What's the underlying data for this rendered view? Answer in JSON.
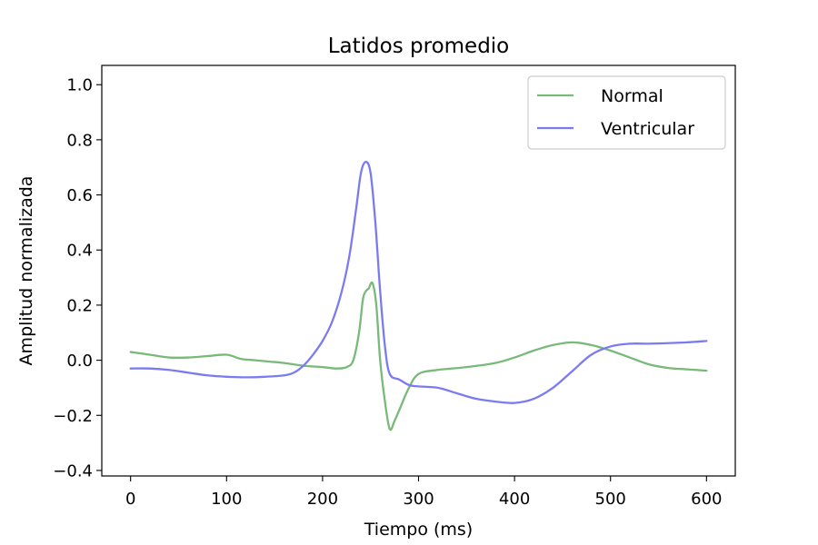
{
  "chart_data": {
    "type": "line",
    "title": "Latidos promedio",
    "xlabel": "Tiempo (ms)",
    "ylabel": "Amplitud normalizada",
    "xlim": [
      -30,
      630
    ],
    "ylim": [
      -0.42,
      1.07
    ],
    "xticks": [
      0,
      100,
      200,
      300,
      400,
      500,
      600
    ],
    "yticks": [
      -0.4,
      -0.2,
      0.0,
      0.2,
      0.4,
      0.6,
      0.8,
      1.0
    ],
    "xtick_labels": [
      "0",
      "100",
      "200",
      "300",
      "400",
      "500",
      "600"
    ],
    "ytick_labels": [
      "−0.4",
      "−0.2",
      "0.0",
      "0.2",
      "0.4",
      "0.6",
      "0.8",
      "1.0"
    ],
    "grid": false,
    "legend": {
      "position": "top-right"
    },
    "series": [
      {
        "name": "Normal",
        "color": "#79b979",
        "x": [
          0,
          20,
          40,
          60,
          80,
          100,
          115,
          130,
          145,
          160,
          180,
          200,
          215,
          225,
          232,
          238,
          242,
          245,
          248,
          252,
          256,
          260,
          265,
          270,
          275,
          280,
          290,
          300,
          320,
          350,
          380,
          400,
          420,
          440,
          460,
          480,
          500,
          520,
          540,
          560,
          580,
          600
        ],
        "y": [
          0.03,
          0.02,
          0.01,
          0.01,
          0.015,
          0.02,
          0.005,
          0.0,
          -0.005,
          -0.01,
          -0.02,
          -0.025,
          -0.03,
          -0.025,
          0.0,
          0.1,
          0.22,
          0.25,
          0.26,
          0.28,
          0.2,
          0.0,
          -0.15,
          -0.25,
          -0.22,
          -0.18,
          -0.1,
          -0.05,
          -0.035,
          -0.025,
          -0.01,
          0.01,
          0.035,
          0.055,
          0.065,
          0.055,
          0.035,
          0.01,
          -0.015,
          -0.028,
          -0.033,
          -0.038
        ]
      },
      {
        "name": "Ventricular",
        "color": "#7b7bf1",
        "x": [
          0,
          20,
          40,
          60,
          80,
          100,
          120,
          140,
          160,
          170,
          180,
          190,
          200,
          210,
          220,
          228,
          235,
          240,
          245,
          250,
          255,
          260,
          265,
          270,
          280,
          290,
          300,
          320,
          340,
          360,
          380,
          400,
          420,
          440,
          460,
          480,
          500,
          520,
          540,
          560,
          580,
          600
        ],
        "y": [
          -0.03,
          -0.03,
          -0.035,
          -0.045,
          -0.055,
          -0.06,
          -0.062,
          -0.06,
          -0.055,
          -0.045,
          -0.02,
          0.02,
          0.07,
          0.14,
          0.25,
          0.38,
          0.55,
          0.68,
          0.72,
          0.68,
          0.5,
          0.25,
          0.05,
          -0.05,
          -0.07,
          -0.09,
          -0.095,
          -0.1,
          -0.12,
          -0.14,
          -0.15,
          -0.155,
          -0.14,
          -0.1,
          -0.04,
          0.02,
          0.05,
          0.06,
          0.06,
          0.062,
          0.065,
          0.07
        ]
      }
    ]
  }
}
